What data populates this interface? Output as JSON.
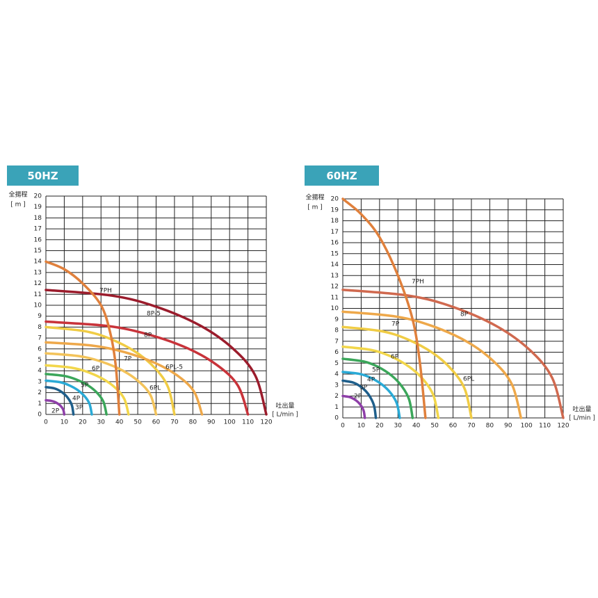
{
  "chart_data": [
    {
      "type": "line",
      "title": "50HZ",
      "ylabel": "全揚程",
      "yunit": "[ m ]",
      "xlabel": "吐出量",
      "xunit": "[ L/min ]",
      "xlim": [
        0,
        120
      ],
      "ylim": [
        0,
        20
      ],
      "grid": true,
      "xticks": [
        0,
        10,
        20,
        30,
        40,
        50,
        60,
        70,
        80,
        90,
        100,
        110,
        120
      ],
      "yticks": [
        0,
        1,
        2,
        3,
        4,
        5,
        6,
        7,
        8,
        9,
        10,
        11,
        12,
        13,
        14,
        15,
        16,
        17,
        18,
        19,
        20
      ],
      "series": [
        {
          "name": "2P",
          "color": "#8e3fa8",
          "x": [
            0,
            3,
            5,
            7,
            8.5,
            9.5,
            10
          ],
          "values": [
            1.3,
            1.24,
            1.13,
            0.93,
            0.69,
            0.41,
            0
          ]
        },
        {
          "name": "3P",
          "color": "#1f5f8b",
          "x": [
            0,
            4.5,
            7.5,
            10.5,
            12.75,
            14.25,
            15
          ],
          "values": [
            2.5,
            2.39,
            2.17,
            1.79,
            1.32,
            0.78,
            0
          ]
        },
        {
          "name": "4P",
          "color": "#2aaad6",
          "x": [
            0,
            7.5,
            12.5,
            17.5,
            21.25,
            23.75,
            25
          ],
          "values": [
            3.1,
            2.96,
            2.68,
            2.21,
            1.63,
            0.97,
            0
          ]
        },
        {
          "name": "5P",
          "color": "#3ba65a",
          "x": [
            0,
            9.9,
            16.5,
            23.1,
            28.05,
            31.35,
            33
          ],
          "values": [
            3.7,
            3.53,
            3.2,
            2.64,
            1.95,
            1.15,
            0
          ]
        },
        {
          "name": "6P",
          "color": "#f2d64a",
          "x": [
            0,
            13.5,
            22.5,
            31.5,
            38.25,
            42.75,
            45
          ],
          "values": [
            4.5,
            4.29,
            3.9,
            3.21,
            2.37,
            1.4,
            0
          ]
        },
        {
          "name": "7P",
          "color": "#f3c35a",
          "x": [
            0,
            18,
            30,
            42,
            51,
            57,
            60
          ],
          "values": [
            5.6,
            5.34,
            4.85,
            4,
            2.95,
            1.75,
            0
          ]
        },
        {
          "name": "6PL",
          "color": "#f0cc45",
          "x": [
            0,
            21,
            35,
            49,
            59.5,
            66.5,
            70
          ],
          "values": [
            8,
            7.63,
            6.93,
            5.71,
            4.22,
            2.5,
            0
          ]
        },
        {
          "name": "6PL-5",
          "color": "#eea84a",
          "x": [
            0,
            25.5,
            42.5,
            59.5,
            72.25,
            80.75,
            85
          ],
          "values": [
            6.6,
            6.3,
            5.72,
            4.71,
            3.48,
            2.06,
            0
          ]
        },
        {
          "name": "8P",
          "color": "#c8333a",
          "x": [
            0,
            33,
            55,
            77,
            93.5,
            104.5,
            110
          ],
          "values": [
            8.5,
            8.11,
            7.36,
            6.07,
            4.48,
            2.65,
            0
          ]
        },
        {
          "name": "8P-5",
          "color": "#9b1c2c",
          "x": [
            0,
            36,
            60,
            84,
            102,
            114,
            120
          ],
          "values": [
            11.4,
            10.88,
            9.87,
            8.14,
            6.01,
            3.56,
            0
          ]
        },
        {
          "name": "7PH",
          "color": "#e0803c",
          "x": [
            0,
            10,
            20,
            30,
            35,
            38,
            40
          ],
          "values": [
            14,
            13.3,
            12,
            10,
            7.5,
            4.5,
            0
          ]
        }
      ]
    },
    {
      "type": "line",
      "title": "60HZ",
      "ylabel": "全揚程",
      "yunit": "[ m ]",
      "xlabel": "吐出量",
      "xunit": "[ L/min ]",
      "xlim": [
        0,
        120
      ],
      "ylim": [
        0,
        20
      ],
      "grid": true,
      "xticks": [
        0,
        10,
        20,
        30,
        40,
        50,
        60,
        70,
        80,
        90,
        100,
        110,
        120
      ],
      "yticks": [
        0,
        1,
        2,
        3,
        4,
        5,
        6,
        7,
        8,
        9,
        10,
        11,
        12,
        13,
        14,
        15,
        16,
        17,
        18,
        19,
        20
      ],
      "series": [
        {
          "name": "2P",
          "color": "#8e3fa8",
          "x": [
            0,
            3.6,
            6,
            8.4,
            10.2,
            11.4,
            12
          ],
          "values": [
            2,
            1.91,
            1.73,
            1.43,
            1.05,
            0.62,
            0
          ]
        },
        {
          "name": "3P",
          "color": "#1f5f8b",
          "x": [
            0,
            5.4,
            9,
            12.6,
            15.3,
            17.1,
            18
          ],
          "values": [
            3.4,
            3.24,
            2.94,
            2.43,
            1.79,
            1.06,
            0
          ]
        },
        {
          "name": "4P",
          "color": "#2aaad6",
          "x": [
            0,
            9.3,
            15.5,
            21.7,
            26.35,
            29.45,
            31
          ],
          "values": [
            4.2,
            4.01,
            3.64,
            3,
            2.21,
            1.31,
            0
          ]
        },
        {
          "name": "5P",
          "color": "#3ba65a",
          "x": [
            0,
            11.4,
            19,
            26.6,
            32.3,
            36.1,
            38
          ],
          "values": [
            5.4,
            5.15,
            4.68,
            3.86,
            2.85,
            1.68,
            0
          ]
        },
        {
          "name": "6P",
          "color": "#f2d64a",
          "x": [
            0,
            15.6,
            26,
            36.4,
            44.2,
            49.4,
            52
          ],
          "values": [
            6.5,
            6.2,
            5.63,
            4.64,
            3.43,
            2.03,
            0
          ]
        },
        {
          "name": "6PL",
          "color": "#f0cc45",
          "x": [
            0,
            21,
            35,
            49,
            59.5,
            66.5,
            70
          ],
          "values": [
            8.3,
            7.92,
            7.19,
            5.93,
            4.37,
            2.59,
            0
          ]
        },
        {
          "name": "7P",
          "color": "#eea84a",
          "x": [
            0,
            29.1,
            48.5,
            67.9,
            82.45,
            92.15,
            97
          ],
          "values": [
            9.7,
            9.25,
            8.4,
            6.93,
            5.11,
            3.03,
            0
          ]
        },
        {
          "name": "8P",
          "color": "#d0694f",
          "x": [
            0,
            36,
            60,
            84,
            102,
            114,
            120
          ],
          "values": [
            11.7,
            11.16,
            10.13,
            8.35,
            6.17,
            3.65,
            0
          ]
        },
        {
          "name": "7PH",
          "color": "#e0803c",
          "x": [
            0,
            10,
            20,
            30,
            38,
            42,
            45
          ],
          "values": [
            20,
            18.6,
            16.5,
            13,
            9,
            5,
            0
          ]
        }
      ]
    }
  ]
}
